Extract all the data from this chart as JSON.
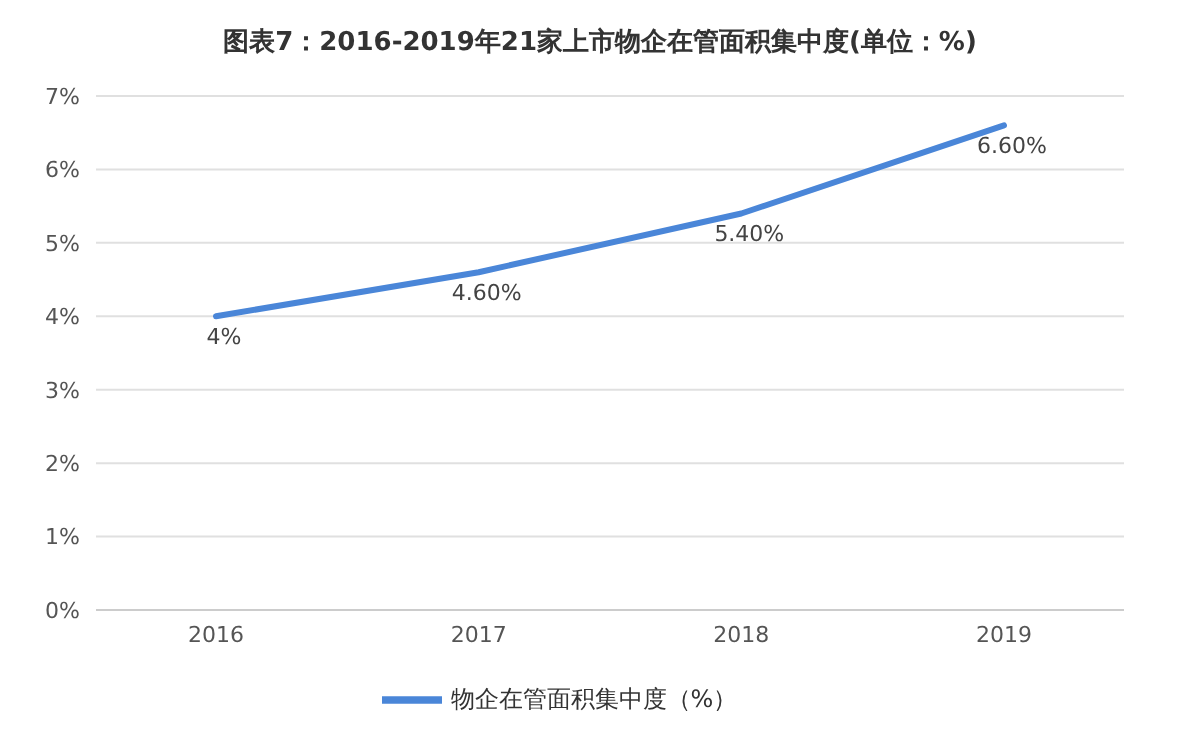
{
  "chart_data": {
    "type": "line",
    "title": "图表7：2016-2019年21家上市物企在管面积集中度(单位：%)",
    "categories": [
      "2016",
      "2017",
      "2018",
      "2019"
    ],
    "series": [
      {
        "name": "物企在管面积集中度（%）",
        "color": "#4a86d8",
        "values": [
          4,
          4.6,
          5.4,
          6.6
        ],
        "value_labels": [
          "4%",
          "4.60%",
          "5.40%",
          "6.60%"
        ]
      }
    ],
    "ylim": [
      0,
      7
    ],
    "yticks": [
      {
        "value": 0,
        "label": "0%"
      },
      {
        "value": 1,
        "label": "1%"
      },
      {
        "value": 2,
        "label": "2%"
      },
      {
        "value": 3,
        "label": "3%"
      },
      {
        "value": 4,
        "label": "4%"
      },
      {
        "value": 5,
        "label": "5%"
      },
      {
        "value": 6,
        "label": "6%"
      },
      {
        "value": 7,
        "label": "7%"
      }
    ],
    "grid": "y",
    "legend": "bottom",
    "marker": "none",
    "line_style": "solid"
  }
}
